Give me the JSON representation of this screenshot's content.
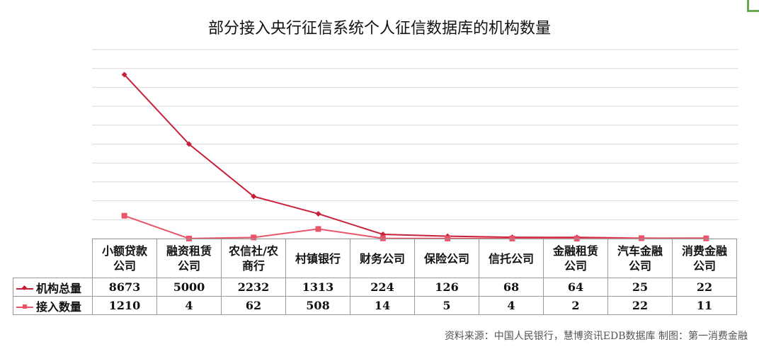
{
  "chart_data": {
    "type": "line",
    "title": "部分接入央行征信系统个人征信数据库的机构数量",
    "categories": [
      [
        "小额贷款",
        "公司"
      ],
      [
        "融资租赁",
        "公司"
      ],
      [
        "农信社/农",
        "商行"
      ],
      [
        "村镇银行"
      ],
      [
        "财务公司"
      ],
      [
        "保险公司"
      ],
      [
        "信托公司"
      ],
      [
        "金融租赁",
        "公司"
      ],
      [
        "汽车金融",
        "公司"
      ],
      [
        "消费金融",
        "公司"
      ]
    ],
    "series": [
      {
        "name": "机构总量",
        "color": "#c8203a",
        "marker": "diamond",
        "values": [
          8673,
          5000,
          2232,
          1313,
          224,
          126,
          68,
          64,
          25,
          22
        ]
      },
      {
        "name": "接入数量",
        "color": "#e8556a",
        "marker": "square",
        "values": [
          1210,
          4,
          62,
          508,
          14,
          5,
          4,
          2,
          22,
          11
        ]
      }
    ],
    "ylim": [
      0,
      10000
    ],
    "grid": true,
    "legend": "data-table",
    "xlabel": "",
    "ylabel": ""
  },
  "source": "资料来源：中国人民银行，慧博资讯EDB数据库   制图：第一消费金融"
}
